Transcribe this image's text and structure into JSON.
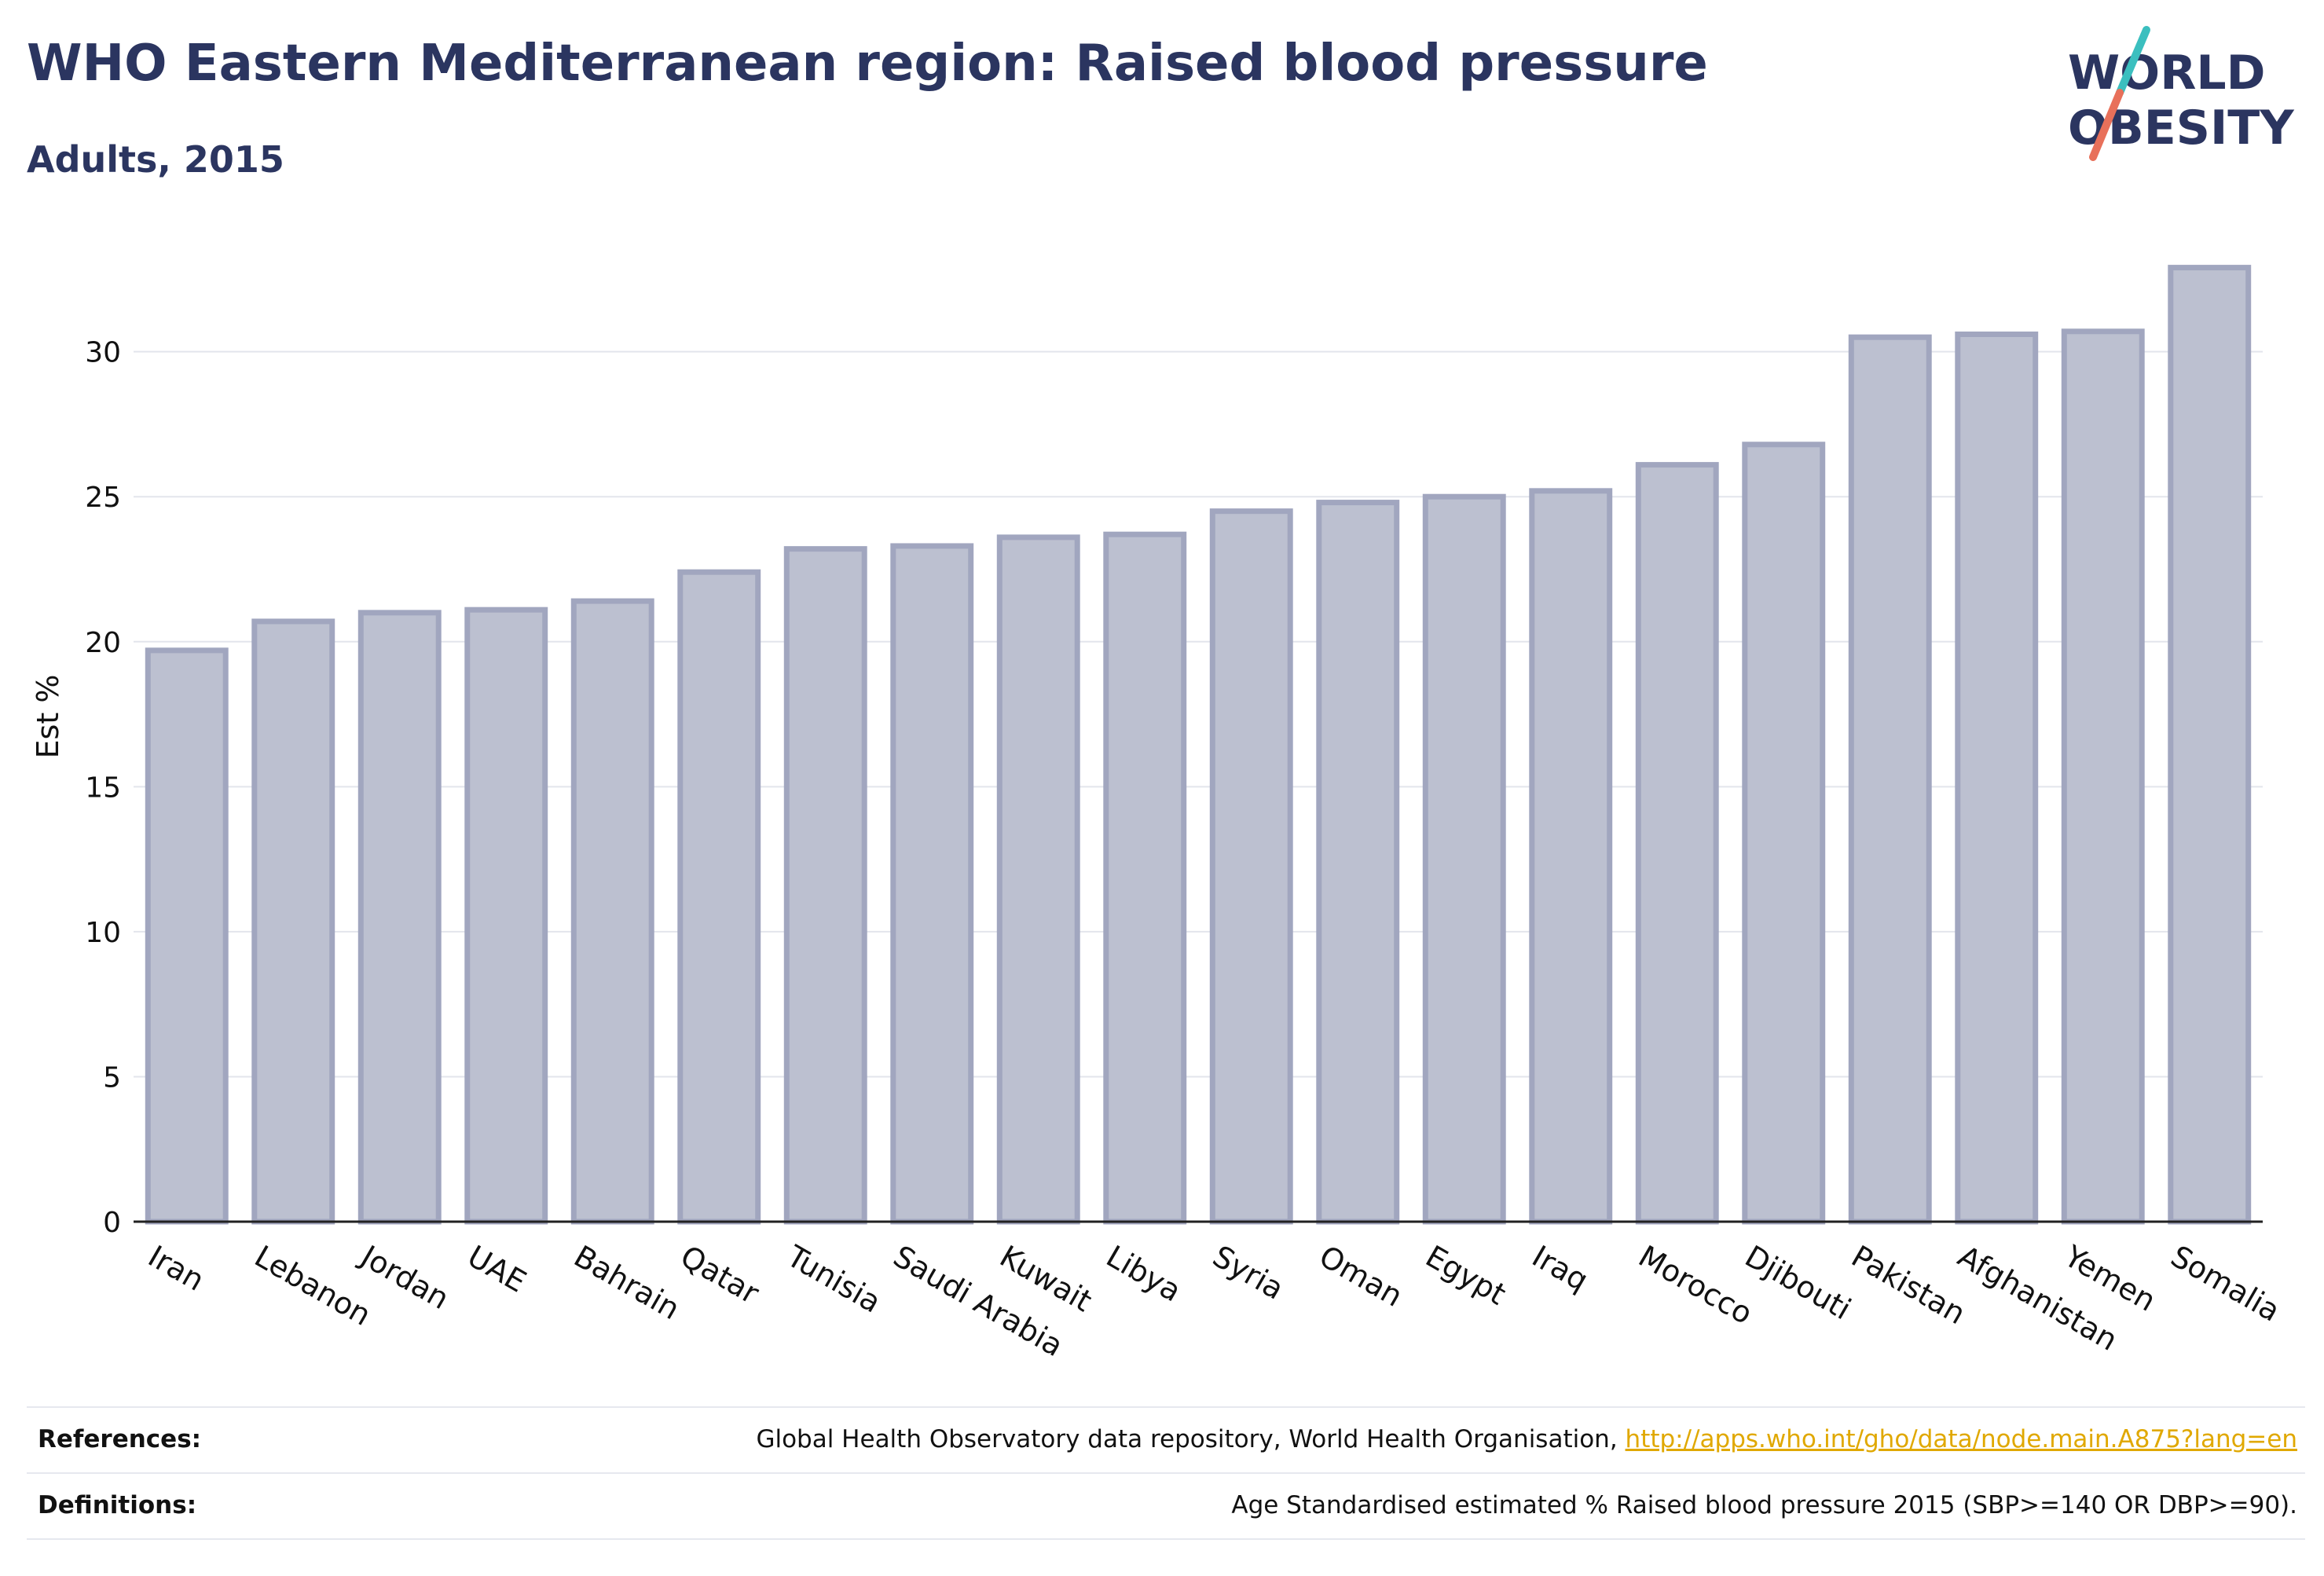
{
  "header": {
    "title": "WHO Eastern Mediterranean region: Raised blood pressure",
    "subtitle": "Adults, 2015",
    "logo_line1": "WORLD",
    "logo_line2": "OBESITY"
  },
  "chart_data": {
    "type": "bar",
    "title": "WHO Eastern Mediterranean region: Raised blood pressure",
    "subtitle": "Adults, 2015",
    "ylabel": "Est %",
    "xlabel": "",
    "ylim": [
      0,
      34
    ],
    "yticks": [
      0,
      5,
      10,
      15,
      20,
      25,
      30
    ],
    "grid": true,
    "categories": [
      "Iran",
      "Lebanon",
      "Jordan",
      "UAE",
      "Bahrain",
      "Qatar",
      "Tunisia",
      "Saudi Arabia",
      "Kuwait",
      "Libya",
      "Syria",
      "Oman",
      "Egypt",
      "Iraq",
      "Morocco",
      "Djibouti",
      "Pakistan",
      "Afghanistan",
      "Yemen",
      "Somalia"
    ],
    "values": [
      19.7,
      20.7,
      21.0,
      21.1,
      21.4,
      22.4,
      23.2,
      23.3,
      23.6,
      23.7,
      24.5,
      24.8,
      25.0,
      25.2,
      26.1,
      26.8,
      30.5,
      30.6,
      30.7,
      32.9
    ],
    "bar_fill": "#bcc0d0",
    "bar_stroke": "#a1a6bf"
  },
  "footer": {
    "references_label": "References:",
    "references_text": "Global Health Observatory data repository, World Health Organisation, ",
    "references_link": "http://apps.who.int/gho/data/node.main.A875?lang=en",
    "definitions_label": "Definitions:",
    "definitions_text": "Age Standardised estimated % Raised blood pressure 2015 (SBP>=140 OR DBP>=90)."
  },
  "colors": {
    "title": "#2b3560",
    "logo_teal": "#3bbfbf",
    "logo_coral": "#e8705a",
    "link": "#e0a800"
  }
}
